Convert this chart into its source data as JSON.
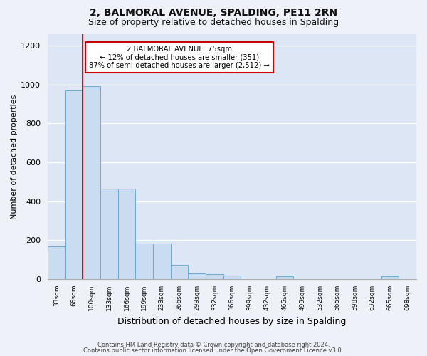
{
  "title1": "2, BALMORAL AVENUE, SPALDING, PE11 2RN",
  "title2": "Size of property relative to detached houses in Spalding",
  "xlabel": "Distribution of detached houses by size in Spalding",
  "ylabel": "Number of detached properties",
  "footer1": "Contains HM Land Registry data © Crown copyright and database right 2024.",
  "footer2": "Contains public sector information licensed under the Open Government Licence v3.0.",
  "categories": [
    "33sqm",
    "66sqm",
    "100sqm",
    "133sqm",
    "166sqm",
    "199sqm",
    "233sqm",
    "266sqm",
    "299sqm",
    "332sqm",
    "366sqm",
    "399sqm",
    "432sqm",
    "465sqm",
    "499sqm",
    "532sqm",
    "565sqm",
    "598sqm",
    "632sqm",
    "665sqm",
    "698sqm"
  ],
  "values": [
    170,
    970,
    990,
    465,
    465,
    185,
    185,
    75,
    28,
    25,
    18,
    0,
    0,
    15,
    0,
    0,
    0,
    0,
    0,
    15,
    0
  ],
  "bar_color": "#c9dcf0",
  "bar_edge_color": "#6aaad4",
  "red_line_x": 1.5,
  "annotation_text": "2 BALMORAL AVENUE: 75sqm\n← 12% of detached houses are smaller (351)\n87% of semi-detached houses are larger (2,512) →",
  "annotation_box_color": "#ffffff",
  "annotation_box_edge": "#cc0000",
  "ylim": [
    0,
    1260
  ],
  "yticks": [
    0,
    200,
    400,
    600,
    800,
    1000,
    1200
  ],
  "background_color": "#dce6f5",
  "grid_color": "#ffffff",
  "title1_fontsize": 10,
  "title2_fontsize": 9,
  "xlabel_fontsize": 9,
  "ylabel_fontsize": 8,
  "footer_fontsize": 6
}
